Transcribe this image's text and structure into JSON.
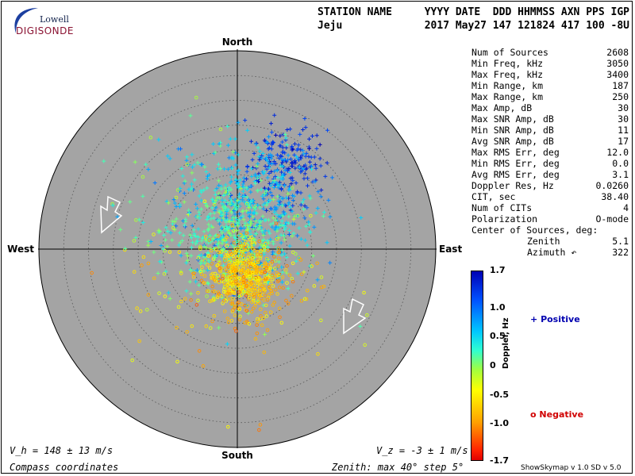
{
  "logo": {
    "top": "Lowell",
    "bottom": "DIGISONDE"
  },
  "header": {
    "col1_title": "STATION NAME",
    "col1_value": "Jeju",
    "col2_title": "YYYY DATE  DDD HHMMSS AXN PPS IGP",
    "col2_value": "2017 May27 147 121824 417 100 -8U"
  },
  "compass": {
    "north": "North",
    "south": "South",
    "east": "East",
    "west": "West"
  },
  "stats": [
    {
      "label": "Num of Sources",
      "value": "2608"
    },
    {
      "label": "Min Freq, kHz",
      "value": "3050"
    },
    {
      "label": "Max Freq, kHz",
      "value": "3400"
    },
    {
      "label": "Min Range, km",
      "value": "187"
    },
    {
      "label": "Max Range, km",
      "value": "250"
    },
    {
      "label": "Max Amp, dB",
      "value": "30"
    },
    {
      "label": "Max SNR Amp, dB",
      "value": "30"
    },
    {
      "label": "Min SNR Amp, dB",
      "value": "11"
    },
    {
      "label": "Avg SNR Amp, dB",
      "value": "17"
    },
    {
      "label": "Max RMS Err, deg",
      "value": "12.0"
    },
    {
      "label": "Min RMS Err, deg",
      "value": "0.0"
    },
    {
      "label": "Avg RMS Err, deg",
      "value": "3.1"
    },
    {
      "label": "Doppler Res, Hz",
      "value": "0.0260"
    },
    {
      "label": "CIT, sec",
      "value": "38.40"
    },
    {
      "label": "Num of CITs",
      "value": "4"
    },
    {
      "label": "Polarization",
      "value": "O-mode"
    },
    {
      "label": "Center of Sources, deg:",
      "value": ""
    },
    {
      "label": "Zenith",
      "value": "5.1",
      "indent": true
    },
    {
      "label": "Azimuth ↶",
      "value": "322",
      "indent": true
    }
  ],
  "colorbar": {
    "title": "Doppler, Hz",
    "ticks": [
      "1.7",
      "1.0",
      "0.5",
      "0",
      "-0.5",
      "-1.0",
      "-1.7"
    ],
    "min": -1.7,
    "max": 1.7
  },
  "legend": {
    "positive": "Positive",
    "negative": "Negative",
    "positive_color": "#0000b0",
    "negative_color": "#d00000"
  },
  "footer": {
    "vh": "V_h = 148 ± 13 m/s",
    "vz": "V_z = -3 ± 1 m/s",
    "coords": "Compass coordinates",
    "zenith": "Zenith: max 40°  step 5°",
    "version": "ShowSkymap v 1.0   SD v 5.0"
  },
  "chart_data": {
    "type": "scatter",
    "projection": "polar-skymap",
    "zenith_max_deg": 40,
    "zenith_step_deg": 5,
    "background": "#a4a4a4",
    "clusters": [
      {
        "center_x_deg": 10,
        "center_y_deg": 17,
        "spread_deg": 4,
        "count": 180,
        "doppler_mean": 1.35,
        "marker": "plus"
      },
      {
        "center_x_deg": 2,
        "center_y_deg": 9,
        "spread_deg": 7,
        "count": 380,
        "doppler_mean": 0.75,
        "marker": "plus"
      },
      {
        "center_x_deg": -1,
        "center_y_deg": 3,
        "spread_deg": 6,
        "count": 420,
        "doppler_mean": 0.25,
        "marker": "plus"
      },
      {
        "center_x_deg": 1,
        "center_y_deg": -5,
        "spread_deg": 3.5,
        "count": 380,
        "doppler_mean": -0.55,
        "marker": "circle"
      },
      {
        "center_x_deg": 3,
        "center_y_deg": -8,
        "spread_deg": 4,
        "count": 160,
        "doppler_mean": -0.8,
        "marker": "circle"
      },
      {
        "center_x_deg": -3,
        "center_y_deg": 1,
        "spread_deg": 12,
        "count": 220,
        "doppler_mean": 0.1,
        "marker": "mixed"
      }
    ],
    "velocity_arrows_azimuth_deg": [
      160,
      160
    ]
  }
}
